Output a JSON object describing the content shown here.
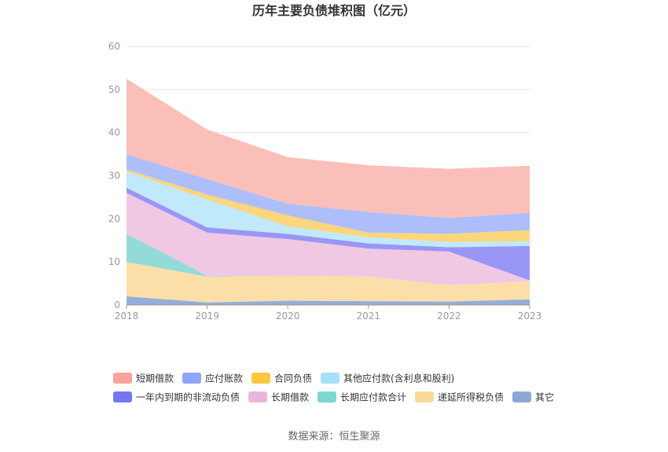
{
  "chart_data": {
    "type": "area",
    "stacked": true,
    "title": "历年主要负债堆积图（亿元）",
    "categories": [
      "2018",
      "2019",
      "2020",
      "2021",
      "2022",
      "2023"
    ],
    "ylim": [
      0,
      60
    ],
    "yticks": [
      0,
      10,
      20,
      30,
      40,
      50,
      60
    ],
    "grid": true,
    "legend_position": "bottom",
    "series": [
      {
        "name": "其它",
        "color": "#8eaad8",
        "values": [
          2.0,
          0.6,
          1.0,
          0.9,
          0.8,
          1.3
        ]
      },
      {
        "name": "递延所得税负债",
        "color": "#fcdca3",
        "values": [
          8.0,
          6.0,
          5.8,
          5.7,
          3.8,
          4.2
        ]
      },
      {
        "name": "长期应付款合计",
        "color": "#8cd9d6",
        "values": [
          6.5,
          0.2,
          0.0,
          0.0,
          0.0,
          0.0
        ]
      },
      {
        "name": "长期借款",
        "color": "#efc5e3",
        "values": [
          9.5,
          10.0,
          8.5,
          6.5,
          7.8,
          0.2
        ]
      },
      {
        "name": "一年内到期的非流动负债",
        "color": "#9490f4",
        "values": [
          1.2,
          1.2,
          1.2,
          1.2,
          1.0,
          8.0
        ]
      },
      {
        "name": "其他应付款(含利息和股利)",
        "color": "#bde8fb",
        "values": [
          3.8,
          6.5,
          1.8,
          1.4,
          1.2,
          1.1
        ]
      },
      {
        "name": "合同负债",
        "color": "#fbd474",
        "values": [
          0.4,
          1.1,
          2.5,
          1.1,
          1.9,
          2.6
        ]
      },
      {
        "name": "应付账款",
        "color": "#a9bbfa",
        "values": [
          3.6,
          3.6,
          2.7,
          4.8,
          3.7,
          4.0
        ]
      },
      {
        "name": "短期借款",
        "color": "#fbbcb5",
        "values": [
          17.5,
          11.5,
          10.8,
          10.8,
          11.4,
          10.9
        ]
      }
    ]
  },
  "legend": [
    {
      "label": "短期借款",
      "color": "#f7a39a"
    },
    {
      "label": "应付账款",
      "color": "#8ea6fa"
    },
    {
      "label": "合同负债",
      "color": "#fbc73e"
    },
    {
      "label": "其他应付款(含利息和股利)",
      "color": "#a6e0fa"
    },
    {
      "label": "一年内到期的非流动负债",
      "color": "#7577f0"
    },
    {
      "label": "长期借款",
      "color": "#e9b6db"
    },
    {
      "label": "长期应付款合计",
      "color": "#7cd6d2"
    },
    {
      "label": "递延所得税负债",
      "color": "#fcd99a"
    },
    {
      "label": "其它",
      "color": "#8ea8d6"
    }
  ],
  "source": "数据来源：恒生聚源"
}
